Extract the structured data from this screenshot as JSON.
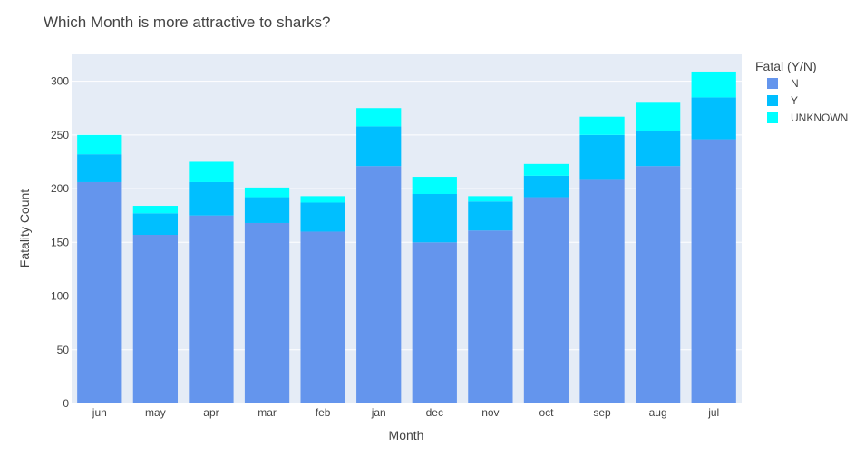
{
  "chart_data": {
    "type": "bar",
    "stacked": true,
    "title": "Which Month is more attractive to sharks?",
    "xlabel": "Month",
    "ylabel": "Fatality Count",
    "ylim": [
      0,
      325
    ],
    "yticks": [
      0,
      50,
      100,
      150,
      200,
      250,
      300
    ],
    "grid": true,
    "legend_position": "top-right",
    "legend_title": "Fatal (Y/N)",
    "categories": [
      "jun",
      "may",
      "apr",
      "mar",
      "feb",
      "jan",
      "dec",
      "nov",
      "oct",
      "sep",
      "aug",
      "jul"
    ],
    "series": [
      {
        "name": "N",
        "color": "#6495ED",
        "values": [
          206,
          157,
          175,
          168,
          160,
          221,
          150,
          161,
          192,
          209,
          221,
          246
        ]
      },
      {
        "name": "Y",
        "color": "#00BFFF",
        "values": [
          26,
          20,
          31,
          24,
          27,
          37,
          45,
          27,
          20,
          41,
          33,
          39
        ]
      },
      {
        "name": "UNKNOWN",
        "color": "#00FFFF",
        "values": [
          18,
          7,
          19,
          9,
          6,
          17,
          16,
          5,
          11,
          17,
          26,
          24
        ]
      }
    ]
  },
  "colors": {
    "plot_background": "#E5ECF6",
    "gridline": "#ffffff",
    "text": "#444444"
  }
}
